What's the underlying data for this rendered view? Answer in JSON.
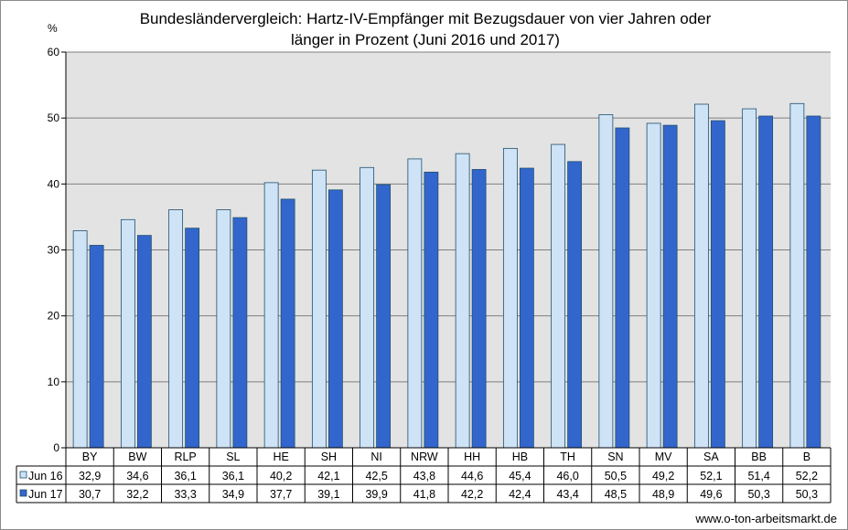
{
  "chart_data": {
    "type": "bar",
    "title_lines": [
      "Bundesländervergleich: Hartz-IV-Empfänger mit Bezugsdauer von vier Jahren oder",
      "länger in Prozent (Juni 2016 und 2017)"
    ],
    "ylabel": "%",
    "ylim": [
      0,
      60
    ],
    "yticks": [
      "0",
      "10",
      "20",
      "30",
      "40",
      "50",
      "60"
    ],
    "grid": true,
    "categories": [
      "BY",
      "BW",
      "RLP",
      "SL",
      "HE",
      "SH",
      "NI",
      "NRW",
      "HH",
      "HB",
      "TH",
      "SN",
      "MV",
      "SA",
      "BB",
      "B"
    ],
    "series": [
      {
        "name": "Jun 16",
        "color": "#cfe3f7",
        "values": [
          32.9,
          34.6,
          36.1,
          36.1,
          40.2,
          42.1,
          42.5,
          43.8,
          44.6,
          45.4,
          46.0,
          50.5,
          49.2,
          52.1,
          51.4,
          52.2
        ],
        "labels": [
          "32,9",
          "34,6",
          "36,1",
          "36,1",
          "40,2",
          "42,1",
          "42,5",
          "43,8",
          "44,6",
          "45,4",
          "46,0",
          "50,5",
          "49,2",
          "52,1",
          "51,4",
          "52,2"
        ]
      },
      {
        "name": "Jun 17",
        "color": "#3366cc",
        "values": [
          30.7,
          32.2,
          33.3,
          34.9,
          37.7,
          39.1,
          39.9,
          41.8,
          42.2,
          42.4,
          43.4,
          48.5,
          48.9,
          49.6,
          50.3,
          50.3
        ],
        "labels": [
          "30,7",
          "32,2",
          "33,3",
          "34,9",
          "37,7",
          "39,1",
          "39,9",
          "41,8",
          "42,2",
          "42,4",
          "43,4",
          "48,5",
          "48,9",
          "49,6",
          "50,3",
          "50,3"
        ]
      }
    ],
    "legend_placement": "data-table"
  },
  "colors": {
    "plot_background": "#e3e3e3",
    "gridline": "#7f7f7f",
    "bar_outline": "#1f4f6f"
  },
  "footer": {
    "source": "www.o-ton-arbeitsmarkt.de"
  }
}
